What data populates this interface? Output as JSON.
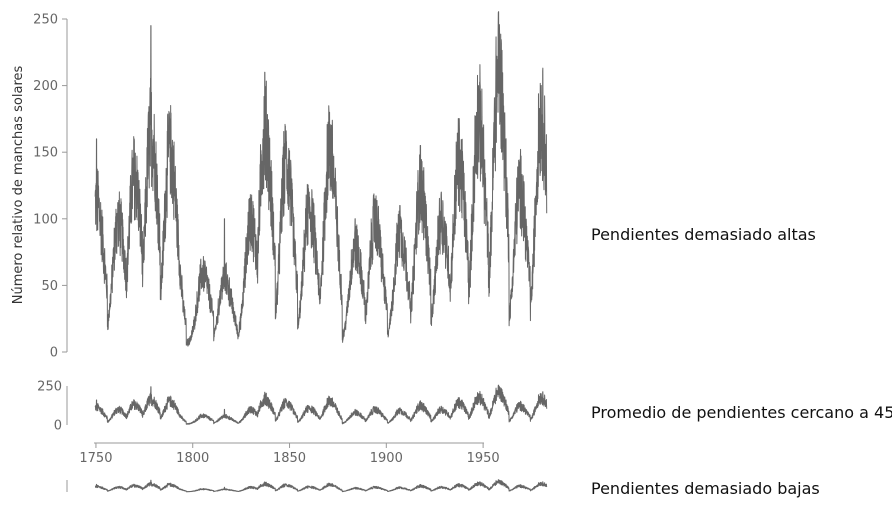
{
  "chart_data": {
    "type": "line",
    "series_color": "#666666",
    "axis_color": "#999999",
    "x_range": [
      1749,
      1983
    ],
    "x_ticks": [
      "1750",
      "1800",
      "1850",
      "1900",
      "1950"
    ],
    "cycle_peaks": [
      {
        "year": 1750.3,
        "max": 110,
        "spike": 160
      },
      {
        "year": 1761.5,
        "max": 95,
        "spike": 110
      },
      {
        "year": 1769.7,
        "max": 130,
        "spike": 160
      },
      {
        "year": 1778.4,
        "max": 165,
        "spike": 245
      },
      {
        "year": 1788.1,
        "max": 150,
        "spike": 175
      },
      {
        "year": 1805.2,
        "max": 55,
        "spike": 65
      },
      {
        "year": 1816.4,
        "max": 50,
        "spike": 100
      },
      {
        "year": 1829.9,
        "max": 95,
        "spike": 110
      },
      {
        "year": 1837.2,
        "max": 165,
        "spike": 210
      },
      {
        "year": 1848.1,
        "max": 140,
        "spike": 165
      },
      {
        "year": 1860.1,
        "max": 105,
        "spike": 120
      },
      {
        "year": 1870.6,
        "max": 150,
        "spike": 180
      },
      {
        "year": 1883.9,
        "max": 75,
        "spike": 100
      },
      {
        "year": 1894.1,
        "max": 95,
        "spike": 115
      },
      {
        "year": 1907.0,
        "max": 85,
        "spike": 110
      },
      {
        "year": 1917.6,
        "max": 120,
        "spike": 155
      },
      {
        "year": 1928.4,
        "max": 95,
        "spike": 120
      },
      {
        "year": 1937.4,
        "max": 140,
        "spike": 165
      },
      {
        "year": 1947.5,
        "max": 175,
        "spike": 200
      },
      {
        "year": 1957.9,
        "max": 210,
        "spike": 255
      },
      {
        "year": 1968.9,
        "max": 120,
        "spike": 135
      },
      {
        "year": 1979.9,
        "max": 175,
        "spike": 195
      }
    ],
    "panels": [
      {
        "id": "tall",
        "ylabel": "Número relativo de manchas solares",
        "ylim": [
          0,
          250
        ],
        "y_ticks": [
          "0",
          "50",
          "100",
          "150",
          "200",
          "250"
        ],
        "label": "Pendientes demasiado altas"
      },
      {
        "id": "medium",
        "ylabel": "",
        "ylim": [
          0,
          250
        ],
        "y_ticks": [
          "0",
          "250"
        ],
        "label": "Promedio de pendientes cercano a 45"
      },
      {
        "id": "flat",
        "ylabel": "",
        "ylim": [
          0,
          250
        ],
        "y_ticks": [],
        "label": "Pendientes demasiado bajas"
      }
    ]
  }
}
